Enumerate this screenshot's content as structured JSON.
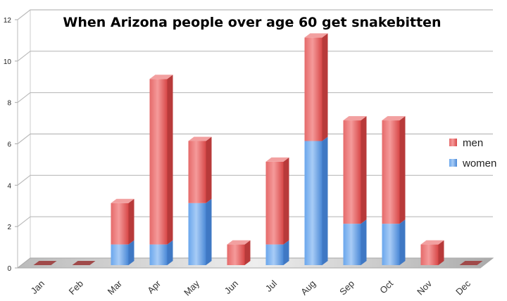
{
  "chart_data": {
    "type": "bar",
    "stacked": true,
    "style": "3d",
    "title": "When Arizona people over age 60 get snakebitten",
    "xlabel": "",
    "ylabel": "",
    "ylim": [
      0,
      12
    ],
    "yticks": [
      0,
      2,
      4,
      6,
      8,
      10,
      12
    ],
    "grid": true,
    "legend_position": "right",
    "categories": [
      "Jan",
      "Feb",
      "Mar",
      "Apr",
      "May",
      "Jun",
      "Jul",
      "Aug",
      "Sep",
      "Oct",
      "Nov",
      "Dec"
    ],
    "series": [
      {
        "name": "women",
        "color": "#5b9be6",
        "values": [
          0,
          0,
          1,
          1,
          3,
          0,
          1,
          6,
          2,
          2,
          0,
          0
        ]
      },
      {
        "name": "men",
        "color": "#e05555",
        "values": [
          0,
          0,
          2,
          8,
          3,
          1,
          4,
          5,
          5,
          5,
          1,
          0
        ]
      }
    ],
    "legend": [
      "men",
      "women"
    ]
  }
}
